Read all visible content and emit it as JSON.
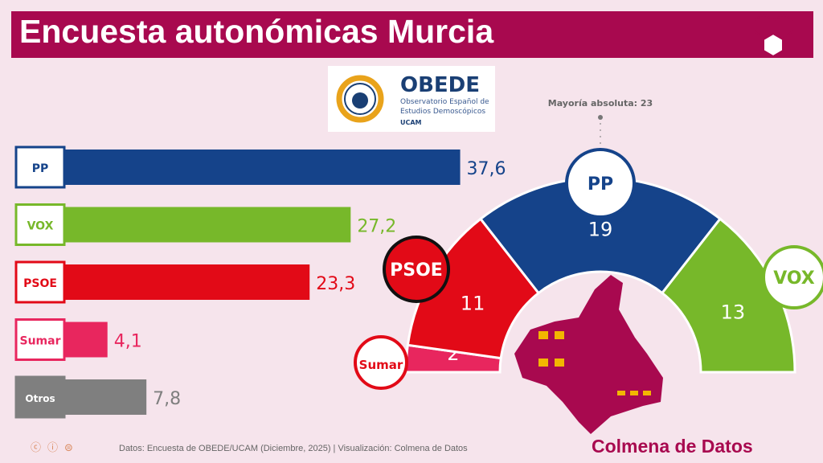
{
  "title": "Encuesta autonómicas Murcia",
  "logo": {
    "name": "OBEDE",
    "subtitle1": "Observatorio Español de",
    "subtitle2": "Estudios Demoscópicos",
    "org": "UCAM"
  },
  "majority_label": "Mayoría absoluta: 23",
  "footer": {
    "source": "Datos: Encuesta de OBEDE/UCAM (Diciembre, 2025) | Visualización: Colmena de Datos",
    "brand": "Colmena de Datos"
  },
  "chart_data": [
    {
      "type": "bar",
      "orientation": "horizontal",
      "categories": [
        "PP",
        "VOX",
        "PSOE",
        "Sumar",
        "Otros"
      ],
      "values": [
        37.6,
        27.2,
        23.3,
        4.1,
        7.8
      ],
      "labels": [
        "37,6",
        "27,2",
        "23,3",
        "4,1",
        "7,8"
      ],
      "colors": [
        "#15438a",
        "#77b82a",
        "#e20a17",
        "#e8265e",
        "#7f7f7f"
      ]
    },
    {
      "type": "pie",
      "subtype": "hemicycle",
      "categories": [
        "Sumar",
        "PSOE",
        "PP",
        "VOX"
      ],
      "values": [
        2,
        11,
        19,
        13
      ],
      "colors": [
        "#e8265e",
        "#e20a17",
        "#15438a",
        "#77b82a"
      ],
      "majority": 23
    }
  ]
}
